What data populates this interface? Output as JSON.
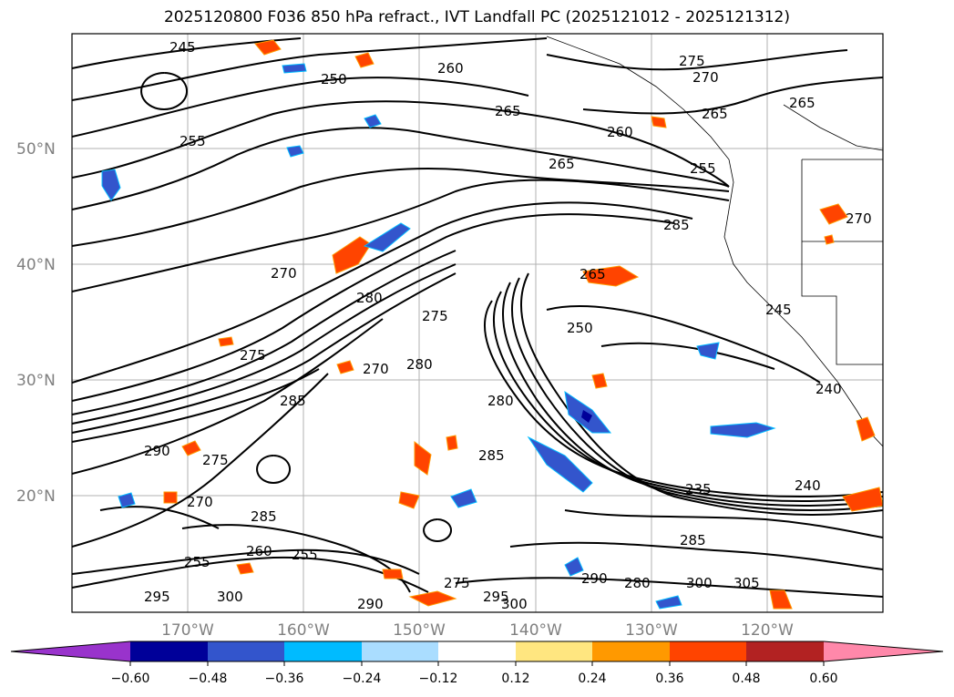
{
  "title": "2025120800 F036 850 hPa refract., IVT Landfall PC (2025121012 - 2025121312)",
  "map": {
    "lat_labels": [
      "50°N",
      "40°N",
      "30°N",
      "20°N"
    ],
    "lon_labels": [
      "170°W",
      "160°W",
      "150°W",
      "140°W",
      "130°W",
      "120°W"
    ],
    "contour_labels": [
      "245",
      "250",
      "260",
      "270",
      "275",
      "265",
      "255",
      "260",
      "265",
      "255",
      "285",
      "265",
      "250",
      "270",
      "280",
      "275",
      "275",
      "270",
      "280",
      "285",
      "290",
      "275",
      "280",
      "285",
      "240",
      "240",
      "235",
      "290",
      "285",
      "270",
      "295",
      "300",
      "255",
      "260",
      "255",
      "285",
      "275",
      "295",
      "300",
      "290",
      "280",
      "300",
      "305",
      "245",
      "265",
      "265",
      "270"
    ]
  },
  "colorbar": {
    "ticks": [
      "−0.60",
      "−0.48",
      "−0.36",
      "−0.24",
      "−0.12",
      "0.12",
      "0.24",
      "0.36",
      "0.48",
      "0.60"
    ],
    "colors": [
      "#9933cc",
      "#000099",
      "#3355cc",
      "#00bbff",
      "#aaddff",
      "#ffffff",
      "#ffe680",
      "#ff9900",
      "#ff4400",
      "#b22222",
      "#ff88aa"
    ]
  }
}
